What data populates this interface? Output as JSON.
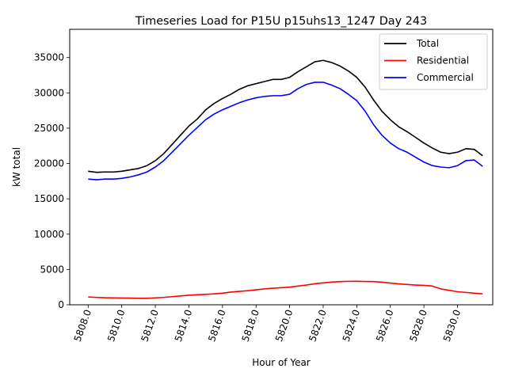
{
  "chart_data": {
    "type": "line",
    "title": "Timeseries Load for P15U p15uhs13_1247  Day 243",
    "xlabel": "Hour of Year",
    "ylabel": "kW total",
    "xlim": [
      5806.9,
      5832.1
    ],
    "ylim": [
      0,
      39000
    ],
    "xticks": [
      5808,
      5810,
      5812,
      5814,
      5816,
      5818,
      5820,
      5822,
      5824,
      5826,
      5828,
      5830
    ],
    "xtick_labels": [
      "5808.0",
      "5810.0",
      "5812.0",
      "5814.0",
      "5816.0",
      "5818.0",
      "5820.0",
      "5822.0",
      "5824.0",
      "5826.0",
      "5828.0",
      "5830.0"
    ],
    "yticks": [
      0,
      5000,
      10000,
      15000,
      20000,
      25000,
      30000,
      35000
    ],
    "ytick_labels": [
      "0",
      "5000",
      "10000",
      "15000",
      "20000",
      "25000",
      "30000",
      "35000"
    ],
    "legend_position": "top-right",
    "x": [
      5808,
      5808.5,
      5809,
      5809.5,
      5810,
      5810.5,
      5811,
      5811.5,
      5812,
      5812.5,
      5813,
      5813.5,
      5814,
      5814.5,
      5815,
      5815.5,
      5816,
      5816.5,
      5817,
      5817.5,
      5818,
      5818.5,
      5819,
      5819.5,
      5820,
      5820.5,
      5821,
      5821.5,
      5822,
      5822.5,
      5823,
      5823.5,
      5824,
      5824.5,
      5825,
      5825.5,
      5826,
      5826.5,
      5827,
      5827.5,
      5828,
      5828.5,
      5829,
      5829.5,
      5830,
      5830.5,
      5831,
      5831.5
    ],
    "series": [
      {
        "name": "Total",
        "color": "#000000",
        "values": [
          18900,
          18750,
          18800,
          18800,
          18900,
          19100,
          19300,
          19700,
          20400,
          21400,
          22700,
          24000,
          25300,
          26300,
          27600,
          28500,
          29200,
          29800,
          30500,
          31000,
          31300,
          31600,
          31900,
          31900,
          32200,
          33000,
          33700,
          34400,
          34600,
          34300,
          33800,
          33100,
          32200,
          30800,
          29000,
          27400,
          26200,
          25200,
          24500,
          23700,
          22900,
          22200,
          21600,
          21400,
          21600,
          22100,
          22000,
          21100
        ]
      },
      {
        "name": "Residential",
        "color": "#ff0000",
        "values": [
          1100,
          1050,
          1000,
          980,
          960,
          940,
          920,
          920,
          980,
          1050,
          1150,
          1250,
          1350,
          1420,
          1480,
          1550,
          1650,
          1800,
          1900,
          2000,
          2120,
          2250,
          2350,
          2420,
          2500,
          2650,
          2800,
          2980,
          3100,
          3220,
          3280,
          3320,
          3330,
          3300,
          3280,
          3200,
          3080,
          2960,
          2880,
          2800,
          2750,
          2650,
          2250,
          2050,
          1850,
          1750,
          1650,
          1550
        ]
      },
      {
        "name": "Commercial",
        "color": "#0000ff",
        "values": [
          17800,
          17700,
          17800,
          17800,
          17900,
          18100,
          18400,
          18800,
          19500,
          20400,
          21600,
          22800,
          24000,
          25100,
          26200,
          27000,
          27600,
          28100,
          28600,
          29000,
          29300,
          29500,
          29600,
          29600,
          29800,
          30600,
          31200,
          31500,
          31500,
          31100,
          30600,
          29800,
          28900,
          27400,
          25500,
          24000,
          22900,
          22100,
          21600,
          20900,
          20200,
          19700,
          19500,
          19400,
          19700,
          20400,
          20500,
          19600
        ]
      }
    ]
  }
}
